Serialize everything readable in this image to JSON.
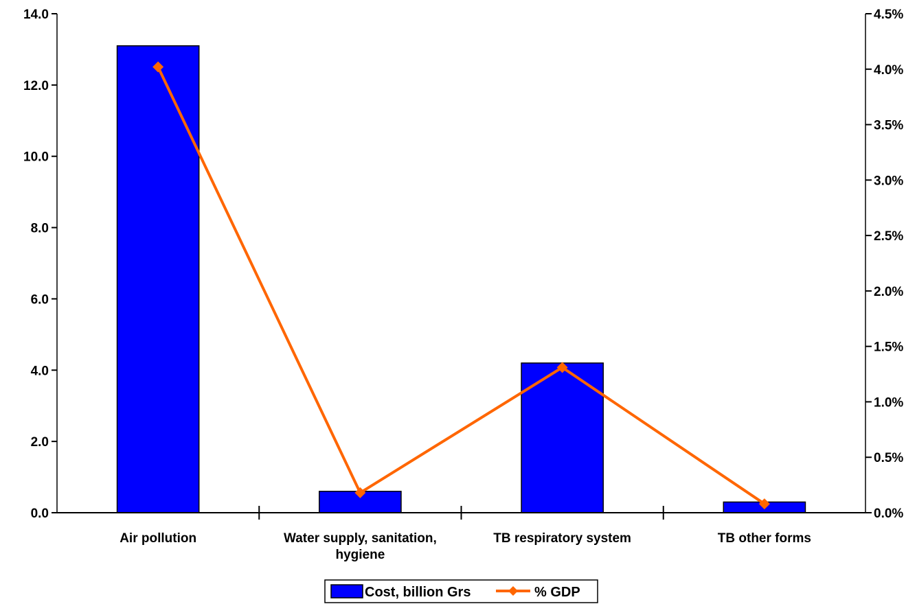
{
  "chart_data": {
    "type": "bar",
    "categories": [
      "Air pollution",
      "Water supply, sanitation, hygiene",
      "TB respiratory system",
      "TB other forms"
    ],
    "category_lines": [
      [
        "Air pollution"
      ],
      [
        "Water supply, sanitation,",
        "hygiene"
      ],
      [
        "TB respiratory system"
      ],
      [
        "TB other forms"
      ]
    ],
    "series": [
      {
        "name": "Cost, billion Grs",
        "type": "bar",
        "axis": "left",
        "color": "#0000FF",
        "values": [
          13.1,
          0.6,
          4.2,
          0.3
        ]
      },
      {
        "name": "% GDP",
        "type": "line",
        "axis": "right",
        "color": "#FF6600",
        "values": [
          4.02,
          0.18,
          1.31,
          0.08
        ]
      }
    ],
    "y_left": {
      "range": [
        0,
        14
      ],
      "ticks": [
        "0.0",
        "2.0",
        "4.0",
        "6.0",
        "8.0",
        "10.0",
        "12.0",
        "14.0"
      ]
    },
    "y_right": {
      "range": [
        0,
        4.5
      ],
      "ticks": [
        "0.0%",
        "0.5%",
        "1.0%",
        "1.5%",
        "2.0%",
        "2.5%",
        "3.0%",
        "3.5%",
        "4.0%",
        "4.5%"
      ]
    },
    "grid": false,
    "legend_position": "bottom-center",
    "title": "",
    "xlabel": "",
    "ylabel": ""
  }
}
